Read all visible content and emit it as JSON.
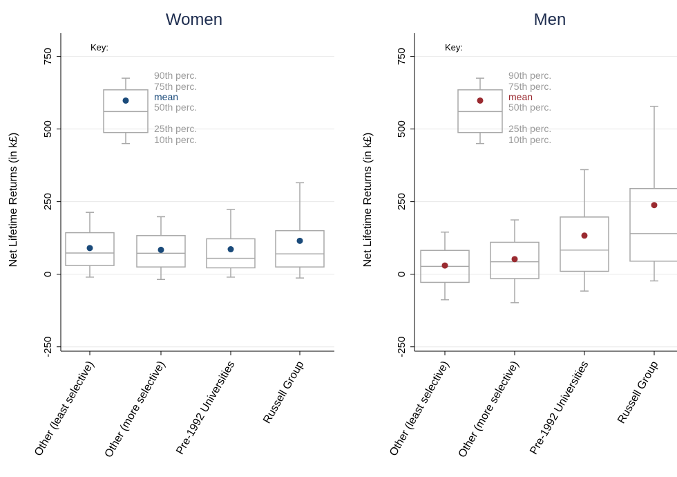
{
  "chart_data": [
    {
      "type": "box",
      "title": "Women",
      "xlabel": "",
      "ylabel": "Net Lifetime Returns (in k£)",
      "ylim": [
        -265,
        830
      ],
      "yticks": [
        -250,
        0,
        250,
        500,
        750
      ],
      "ytick_labels": [
        "-250",
        "0",
        "250",
        "500",
        "750"
      ],
      "grid": true,
      "mean_color": "#1a4a7a",
      "categories": [
        "Other (least selective)",
        "Other (more selective)",
        "Pre-1992 Universities",
        "Russell Group"
      ],
      "boxes": [
        {
          "p10": -10,
          "p25": 30,
          "p50": 73,
          "p75": 143,
          "p90": 213,
          "mean": 90
        },
        {
          "p10": -18,
          "p25": 25,
          "p50": 72,
          "p75": 133,
          "p90": 198,
          "mean": 84
        },
        {
          "p10": -10,
          "p25": 22,
          "p50": 55,
          "p75": 122,
          "p90": 223,
          "mean": 86
        },
        {
          "p10": -13,
          "p25": 25,
          "p50": 70,
          "p75": 150,
          "p90": 315,
          "mean": 115
        }
      ],
      "key": {
        "title": "Key:",
        "box": {
          "p10": 450,
          "p25": 488,
          "p50": 560,
          "p75": 635,
          "p90": 675,
          "mean": 598
        },
        "labels": {
          "p90": "90th perc.",
          "p75": "75th perc.",
          "mean": "mean",
          "p50": "50th perc.",
          "p25": "25th perc.",
          "p10": "10th perc."
        }
      }
    },
    {
      "type": "box",
      "title": "Men",
      "xlabel": "",
      "ylabel": "Net Lifetime Returns (in k£)",
      "ylim": [
        -265,
        830
      ],
      "yticks": [
        -250,
        0,
        250,
        500,
        750
      ],
      "ytick_labels": [
        "-250",
        "0",
        "250",
        "500",
        "750"
      ],
      "grid": true,
      "mean_color": "#9a2a30",
      "categories": [
        "Other (least selective)",
        "Other (more selective)",
        "Pre-1992 Universities",
        "Russell Group"
      ],
      "boxes": [
        {
          "p10": -88,
          "p25": -28,
          "p50": 27,
          "p75": 82,
          "p90": 145,
          "mean": 30
        },
        {
          "p10": -98,
          "p25": -15,
          "p50": 43,
          "p75": 110,
          "p90": 187,
          "mean": 52
        },
        {
          "p10": -58,
          "p25": 10,
          "p50": 83,
          "p75": 197,
          "p90": 360,
          "mean": 133
        },
        {
          "p10": -23,
          "p25": 45,
          "p50": 140,
          "p75": 295,
          "p90": 578,
          "mean": 238
        }
      ],
      "key": {
        "title": "Key:",
        "box": {
          "p10": 450,
          "p25": 488,
          "p50": 560,
          "p75": 635,
          "p90": 675,
          "mean": 598
        },
        "labels": {
          "p90": "90th perc.",
          "p75": "75th perc.",
          "mean": "mean",
          "p50": "50th perc.",
          "p25": "25th perc.",
          "p10": "10th perc."
        }
      }
    }
  ]
}
